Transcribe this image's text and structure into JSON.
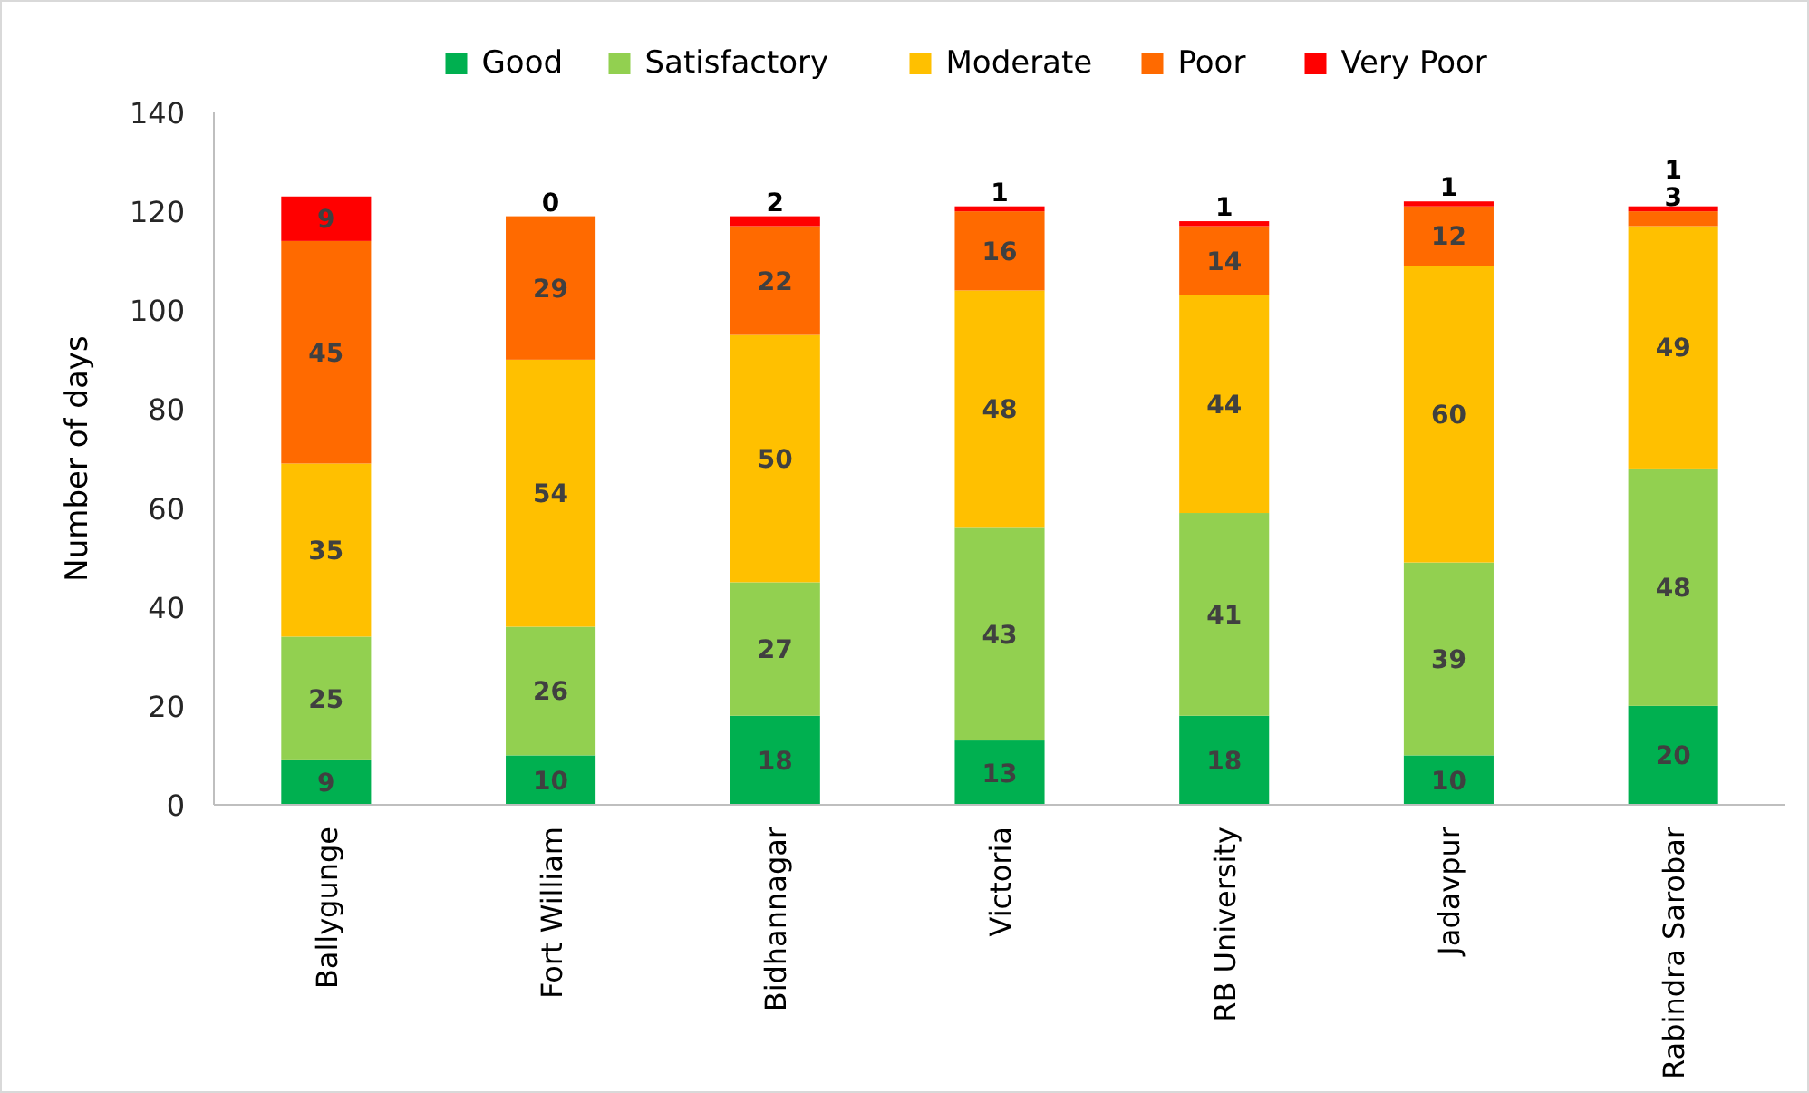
{
  "chart_data": {
    "type": "bar",
    "stacked": true,
    "ylabel": "Number of days",
    "categories": [
      "Ballygunge",
      "Fort William",
      "Bidhannagar",
      "Victoria",
      "RB University",
      "Jadavpur",
      "Rabindra Sarobar"
    ],
    "series": [
      {
        "name": "Good",
        "color": "#00b050",
        "values": [
          9,
          10,
          18,
          13,
          18,
          10,
          20
        ]
      },
      {
        "name": "Satisfactory",
        "color": "#92d050",
        "values": [
          25,
          26,
          27,
          43,
          41,
          39,
          48
        ]
      },
      {
        "name": "Moderate",
        "color": "#ffc000",
        "values": [
          35,
          54,
          50,
          48,
          44,
          60,
          49
        ]
      },
      {
        "name": "Poor",
        "color": "#ff6a00",
        "values": [
          45,
          29,
          22,
          16,
          14,
          12,
          3
        ]
      },
      {
        "name": "Very Poor",
        "color": "#ff0000",
        "values": [
          9,
          0,
          2,
          1,
          1,
          1,
          1
        ]
      }
    ],
    "ylim": [
      0,
      140
    ],
    "yticks": [
      0,
      20,
      40,
      60,
      80,
      100,
      120,
      140
    ],
    "data_labels": true,
    "legend": "top",
    "grid": false
  }
}
